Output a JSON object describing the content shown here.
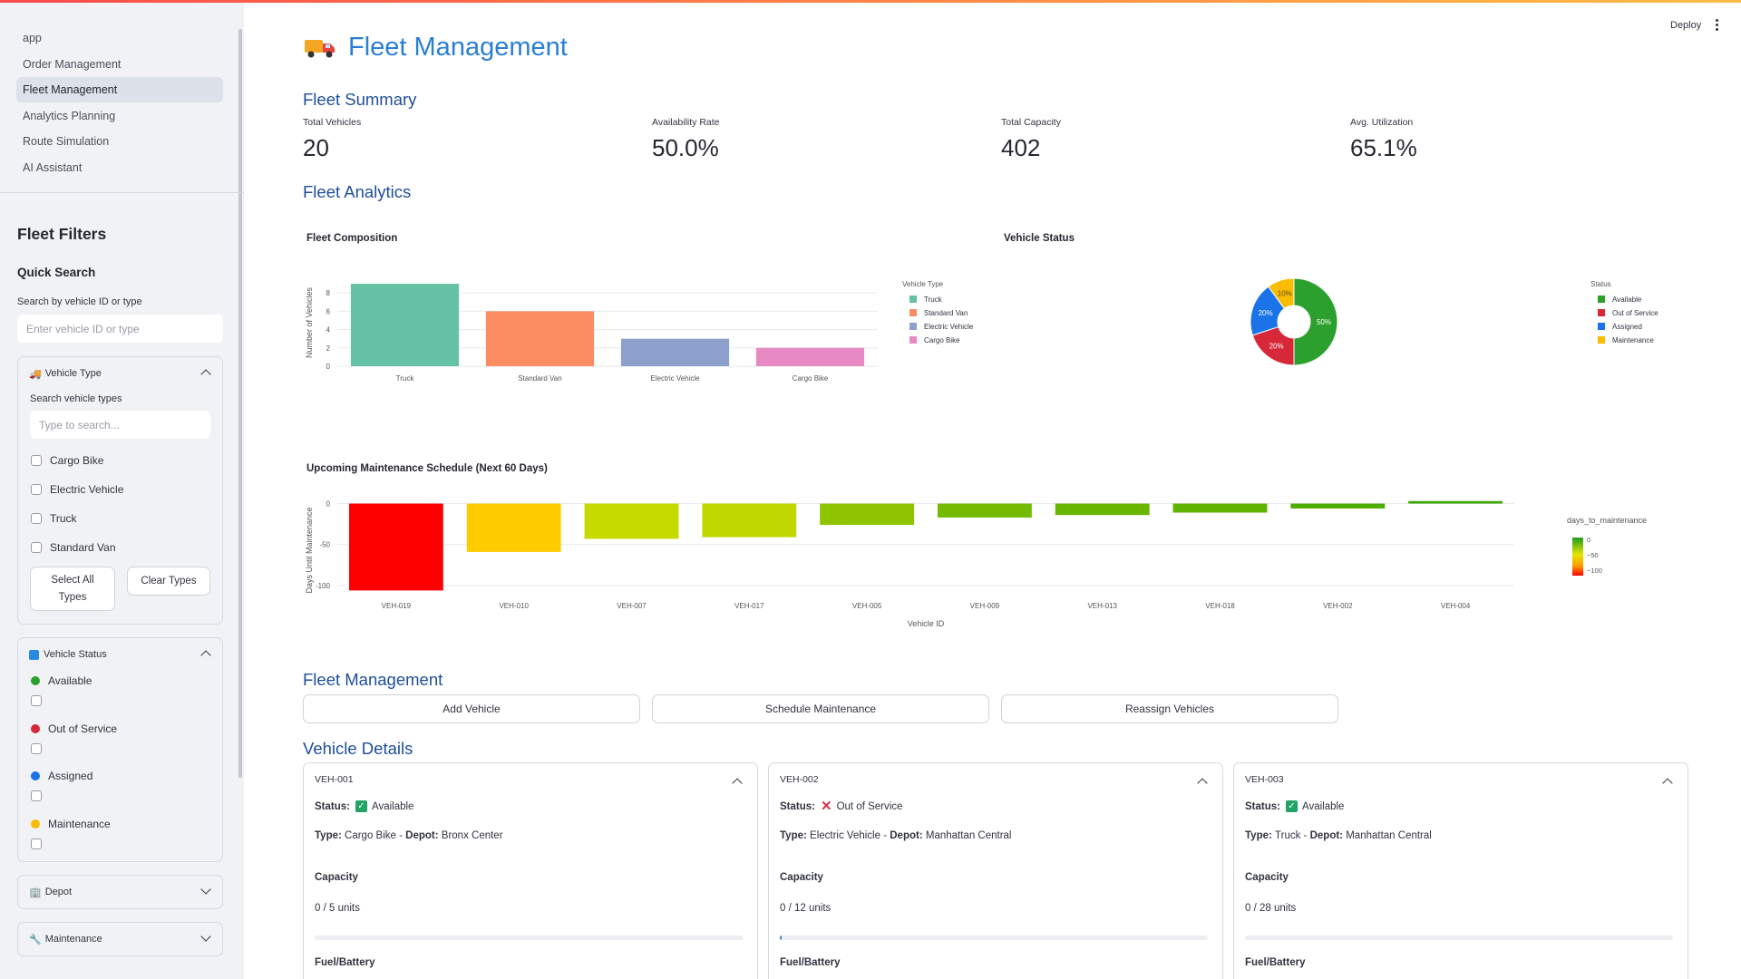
{
  "app": {
    "deploy_label": "Deploy",
    "page_title": "Fleet Management",
    "accent_color": "#2a7fd4"
  },
  "sidebar": {
    "nav": [
      {
        "label": "app",
        "active": false
      },
      {
        "label": "Order Management",
        "active": false
      },
      {
        "label": "Fleet Management",
        "active": true
      },
      {
        "label": "Analytics Planning",
        "active": false
      },
      {
        "label": "Route Simulation",
        "active": false
      },
      {
        "label": "AI Assistant",
        "active": false
      }
    ],
    "filters_title": "Fleet Filters",
    "quick_search_title": "Quick Search",
    "search_label": "Search by vehicle ID or type",
    "search_placeholder": "Enter vehicle ID or type",
    "vehicle_type": {
      "title": "Vehicle Type",
      "icon": "truck-icon",
      "search_label": "Search vehicle types",
      "search_placeholder": "Type to search...",
      "options": [
        "Cargo Bike",
        "Electric Vehicle",
        "Truck",
        "Standard Van"
      ],
      "select_all_label": "Select All Types",
      "clear_label": "Clear Types"
    },
    "vehicle_status": {
      "title": "Vehicle Status",
      "icon": "status-icon",
      "options": [
        {
          "label": "Available",
          "color": "#2ca02c"
        },
        {
          "label": "Out of Service",
          "color": "#d62839"
        },
        {
          "label": "Assigned",
          "color": "#1a73e8"
        },
        {
          "label": "Maintenance",
          "color": "#fbbc04"
        }
      ]
    },
    "depot": {
      "title": "Depot",
      "icon": "building-icon"
    },
    "maintenance": {
      "title": "Maintenance",
      "icon": "wrench-icon"
    }
  },
  "summary": {
    "title": "Fleet Summary",
    "metrics": [
      {
        "label": "Total Vehicles",
        "value": "20"
      },
      {
        "label": "Availability Rate",
        "value": "50.0%"
      },
      {
        "label": "Total Capacity",
        "value": "402"
      },
      {
        "label": "Avg. Utilization",
        "value": "65.1%"
      }
    ]
  },
  "analytics_title": "Fleet Analytics",
  "chart_data": [
    {
      "type": "bar",
      "title": "Fleet Composition",
      "categories": [
        "Truck",
        "Standard Van",
        "Electric Vehicle",
        "Cargo Bike"
      ],
      "values": [
        9,
        6,
        3,
        2
      ],
      "colors": [
        "#66c2a5",
        "#fc8d62",
        "#8da0cb",
        "#e78ac3"
      ],
      "ylabel": "Number of Vehicles",
      "yticks": [
        0,
        2,
        4,
        6,
        8
      ],
      "ylim": [
        0,
        9.5
      ],
      "legend_title": "Vehicle Type",
      "legend": [
        "Truck",
        "Standard Van",
        "Electric Vehicle",
        "Cargo Bike"
      ],
      "legend_position": "right"
    },
    {
      "type": "pie",
      "title": "Vehicle Status",
      "hole": true,
      "labels": [
        "Available",
        "Out of Service",
        "Assigned",
        "Maintenance"
      ],
      "values": [
        50,
        20,
        20,
        10
      ],
      "value_labels": [
        "50%",
        "20%",
        "20%",
        "10%"
      ],
      "colors": [
        "#2ca02c",
        "#d62839",
        "#1a73e8",
        "#fbbc04"
      ],
      "legend_title": "Status",
      "legend_position": "right"
    },
    {
      "type": "bar",
      "title": "Upcoming Maintenance Schedule (Next 60 Days)",
      "categories": [
        "VEH-019",
        "VEH-010",
        "VEH-007",
        "VEH-017",
        "VEH-005",
        "VEH-009",
        "VEH-013",
        "VEH-018",
        "VEH-002",
        "VEH-004"
      ],
      "values": [
        -106,
        -59,
        -43,
        -41,
        -26,
        -17,
        -14,
        -11,
        -6,
        3
      ],
      "xlabel": "Vehicle ID",
      "ylabel": "Days Until Maintenance",
      "yticks": [
        0,
        -50,
        -100
      ],
      "ylim": [
        -110,
        5
      ],
      "colorbar_title": "days_to_maintenance",
      "colorbar_ticks": [
        "0",
        "−50",
        "−100"
      ]
    }
  ],
  "management": {
    "title": "Fleet Management",
    "buttons": [
      "Add Vehicle",
      "Schedule Maintenance",
      "Reassign Vehicles"
    ]
  },
  "details": {
    "title": "Vehicle Details",
    "status_label": "Status:",
    "type_label": "Type:",
    "depot_label": "Depot:",
    "capacity_label": "Capacity",
    "fuel_label": "Fuel/Battery",
    "vehicles": [
      {
        "id": "VEH-001",
        "status": "Available",
        "status_kind": "ok",
        "type": "Cargo Bike",
        "depot": "Bronx Center",
        "capacity": "0 / 5 units",
        "capacity_fraction": 0
      },
      {
        "id": "VEH-002",
        "status": "Out of Service",
        "status_kind": "bad",
        "type": "Electric Vehicle",
        "depot": "Manhattan Central",
        "capacity": "0 / 12 units",
        "capacity_fraction": 0.004
      },
      {
        "id": "VEH-003",
        "status": "Available",
        "status_kind": "ok",
        "type": "Truck",
        "depot": "Manhattan Central",
        "capacity": "0 / 28 units",
        "capacity_fraction": 0
      }
    ]
  }
}
